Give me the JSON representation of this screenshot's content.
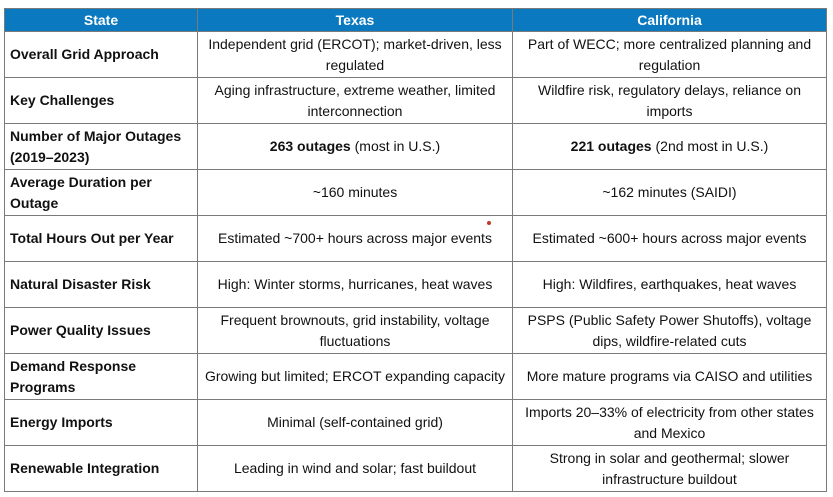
{
  "header": {
    "state": "State",
    "col1": "Texas",
    "col2": "California"
  },
  "rows": [
    {
      "label": "Overall Grid Approach",
      "texas": "Independent grid (ERCOT); market-driven, less regulated",
      "california": "Part of WECC; more centralized planning and regulation"
    },
    {
      "label": "Key Challenges",
      "texas": "Aging infrastructure, extreme weather, limited interconnection",
      "california": "Wildfire risk, regulatory delays, reliance on imports"
    },
    {
      "label": "Number of Major Outages (2019–2023)",
      "texas_bold": "263 outages",
      "texas_rest": " (most in U.S.)",
      "california_bold": "221 outages",
      "california_rest": " (2nd most in U.S.)"
    },
    {
      "label": "Average Duration per Outage",
      "texas": "~160 minutes",
      "california": "~162 minutes (SAIDI)"
    },
    {
      "label": "Total Hours Out per Year",
      "texas": "Estimated ~700+ hours across major events",
      "california": "Estimated ~600+ hours across major events"
    },
    {
      "label": "Natural Disaster Risk",
      "texas": "High: Winter storms, hurricanes, heat waves",
      "california": "High: Wildfires, earthquakes, heat waves"
    },
    {
      "label": "Power Quality Issues",
      "texas": "Frequent brownouts, grid instability, voltage fluctuations",
      "california": "PSPS (Public Safety Power Shutoffs), voltage dips, wildfire-related cuts"
    },
    {
      "label": "Demand Response Programs",
      "texas": "Growing but limited; ERCOT expanding capacity",
      "california": "More mature programs via CAISO and utilities"
    },
    {
      "label": "Energy Imports",
      "texas": "Minimal (self-contained grid)",
      "california": "Imports 20–33% of electricity from other states and Mexico"
    },
    {
      "label": "Renewable Integration",
      "texas": "Leading in wind and solar; fast buildout",
      "california": "Strong in solar and geothermal; slower infrastructure buildout"
    }
  ],
  "colors": {
    "header_bg": "#0a79bf",
    "header_text": "#ffffff",
    "border": "#7a7a7a",
    "marker": "#c0392b"
  }
}
